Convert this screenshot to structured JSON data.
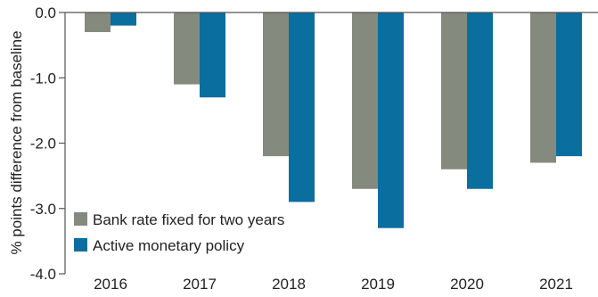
{
  "chart_data": {
    "type": "bar",
    "title": "",
    "xlabel": "",
    "ylabel": "% points difference from baseline",
    "categories": [
      "2016",
      "2017",
      "2018",
      "2019",
      "2020",
      "2021"
    ],
    "ylim": [
      -4.0,
      0.0
    ],
    "yticks": [
      0.0,
      -1.0,
      -2.0,
      -3.0,
      -4.0
    ],
    "ytick_labels": [
      "0.0",
      "-1.0",
      "-2.0",
      "-3.0",
      "-4.0"
    ],
    "grid": false,
    "legend_position": "bottom-left",
    "series": [
      {
        "name": "Bank rate fixed for two years",
        "color": "#858A7E",
        "values": [
          -0.3,
          -1.1,
          -2.2,
          -2.7,
          -2.4,
          -2.3
        ]
      },
      {
        "name": "Active monetary policy",
        "color": "#0A6E9E",
        "values": [
          -0.2,
          -1.3,
          -2.9,
          -3.3,
          -2.7,
          -2.2
        ]
      }
    ]
  }
}
